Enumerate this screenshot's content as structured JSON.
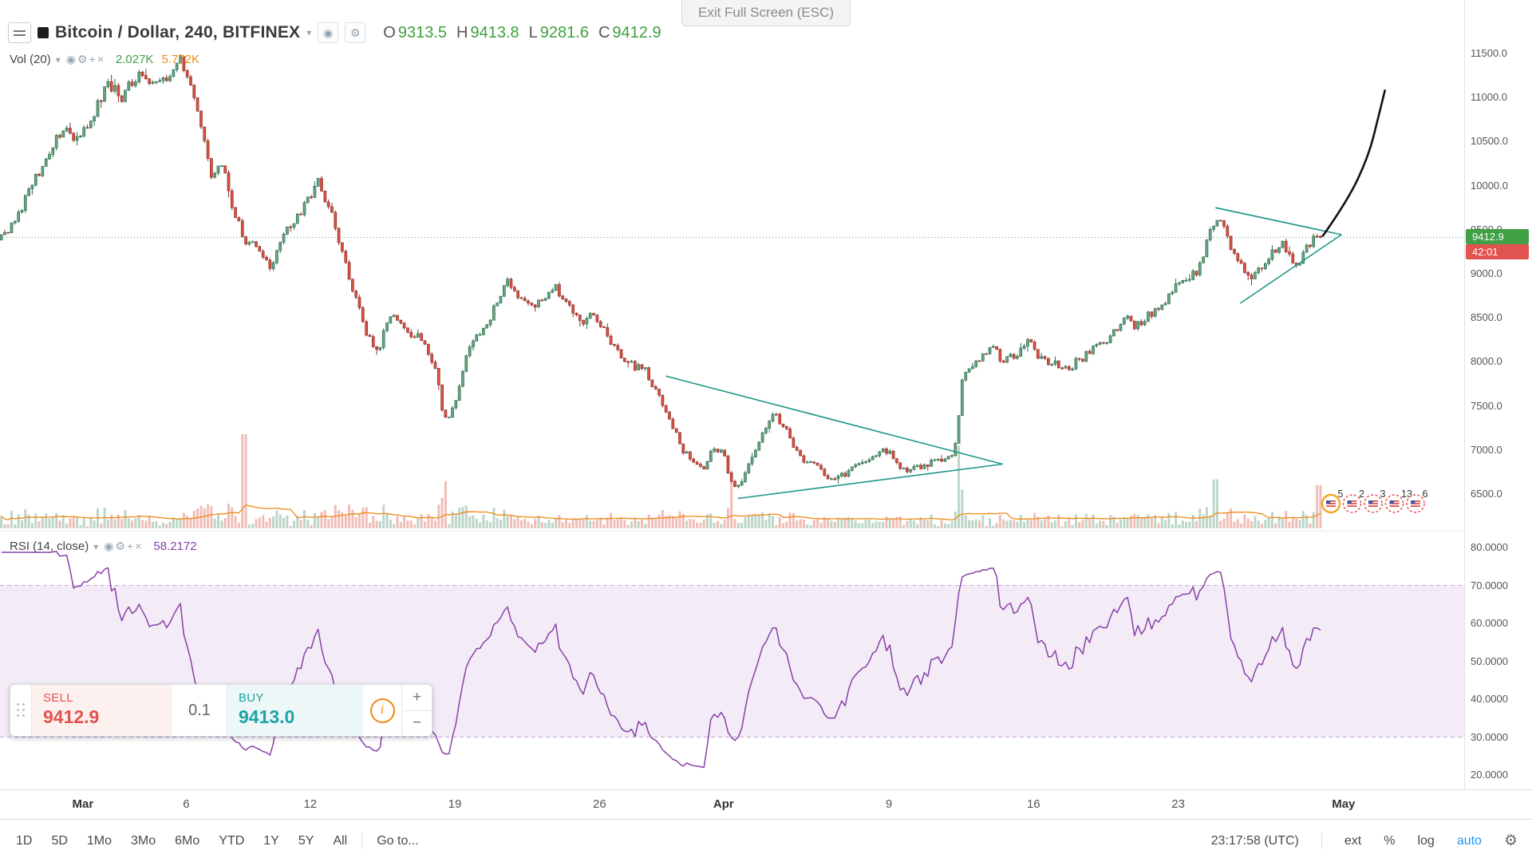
{
  "colors": {
    "up": "#6ba583",
    "up_border": "#2c6e4e",
    "down": "#d75442",
    "down_border": "#93302a",
    "vol_up": "rgba(107,165,131,0.45)",
    "vol_down": "rgba(215,84,66,0.38)",
    "vol_ma": "#ef8914",
    "accent_green": "#3fa03f",
    "accent_orange": "#ef8914",
    "badge_green": "#3fa045",
    "badge_red": "#e0534f",
    "rsi": "#8740a8",
    "rsi_band": "rgba(135,64,168,0.10)",
    "rsi_band_border": "rgba(135,64,168,0.45)",
    "drawing": "#1d9688",
    "freehand": "#111111",
    "price_line": "#3a9e74",
    "sell": "#e0534f",
    "buy": "#1fa3a3",
    "link_blue": "#2196f3"
  },
  "header": {
    "symbol_title": "Bitcoin / Dollar, 240, BITFINEX",
    "tooltip": "Exit Full Screen (ESC)",
    "ohlc": {
      "o_label": "O",
      "o": "9313.5",
      "h_label": "H",
      "h": "9413.8",
      "l_label": "L",
      "l": "9281.6",
      "c_label": "C",
      "c": "9412.9"
    }
  },
  "volume_indicator": {
    "label": "Vol (20)",
    "value1": "2.027K",
    "value2": "5.772K"
  },
  "rsi_indicator": {
    "label": "RSI (14, close)",
    "value": "58.2172"
  },
  "indicator_icons": [
    "eye",
    "gear",
    "add",
    "close"
  ],
  "price_axis": {
    "levels": [
      {
        "label": "11500.0",
        "value": 11500
      },
      {
        "label": "11000.0",
        "value": 11000
      },
      {
        "label": "10500.0",
        "value": 10500
      },
      {
        "label": "10000.0",
        "value": 10000
      },
      {
        "label": "9500.0",
        "value": 9500
      },
      {
        "label": "9000.0",
        "value": 9000
      },
      {
        "label": "8500.0",
        "value": 8500
      },
      {
        "label": "8000.0",
        "value": 8000
      },
      {
        "label": "7500.0",
        "value": 7500
      },
      {
        "label": "7000.0",
        "value": 7000
      },
      {
        "label": "6500.0",
        "value": 6500
      }
    ],
    "price_badge": "9412.9",
    "countdown_badge": "42:01"
  },
  "rsi_axis": {
    "levels": [
      {
        "label": "80.0000",
        "value": 80
      },
      {
        "label": "70.0000",
        "value": 70
      },
      {
        "label": "60.0000",
        "value": 60
      },
      {
        "label": "50.0000",
        "value": 50
      },
      {
        "label": "40.0000",
        "value": 40
      },
      {
        "label": "30.0000",
        "value": 30
      },
      {
        "label": "20.0000",
        "value": 20
      }
    ]
  },
  "time_axis": {
    "labels": [
      {
        "text": "Mar",
        "t": 1,
        "major": true
      },
      {
        "text": "6",
        "t": 6
      },
      {
        "text": "12",
        "t": 12
      },
      {
        "text": "19",
        "t": 19
      },
      {
        "text": "26",
        "t": 26
      },
      {
        "text": "Apr",
        "t": 32,
        "major": true
      },
      {
        "text": "9",
        "t": 40
      },
      {
        "text": "16",
        "t": 47
      },
      {
        "text": "23",
        "t": 54
      },
      {
        "text": "May",
        "t": 62,
        "major": true
      }
    ]
  },
  "order_panel": {
    "sell_label": "SELL",
    "sell_price": "9412.9",
    "quantity": "0.1",
    "buy_label": "BUY",
    "buy_price": "9413.0",
    "info": "i",
    "plus": "+",
    "minus": "−"
  },
  "toolbar": {
    "ranges": [
      "1D",
      "5D",
      "1Mo",
      "3Mo",
      "6Mo",
      "YTD",
      "1Y",
      "5Y",
      "All"
    ],
    "goto": "Go to...",
    "clock": "23:17:58 (UTC)",
    "ext": "ext",
    "percent": "%",
    "log": "log",
    "auto": "auto"
  },
  "event_flags": {
    "counts": [
      "5",
      "2",
      "3",
      "13",
      "6"
    ]
  },
  "chart_data": {
    "type": "candlestick",
    "symbol": "BTCUSD",
    "exchange": "BITFINEX",
    "interval": "240",
    "interval_minutes": 240,
    "price_range": [
      6500,
      11500
    ],
    "rsi_range": [
      20,
      80
    ],
    "time_range_days_from_feb28": [
      -3,
      62
    ],
    "current_price": 9412.9,
    "rsi_value": 58.2172,
    "ohlc_last": {
      "open": 9313.5,
      "high": 9413.8,
      "low": 9281.6,
      "close": 9412.9
    },
    "price_path": [
      [
        -3.2,
        9350
      ],
      [
        -2.6,
        9450
      ],
      [
        -1.6,
        9950
      ],
      [
        -0.9,
        10250
      ],
      [
        0.1,
        10700
      ],
      [
        0.8,
        10500
      ],
      [
        1.5,
        10800
      ],
      [
        2.2,
        11150
      ],
      [
        2.9,
        11000
      ],
      [
        3.6,
        11250
      ],
      [
        4.3,
        11100
      ],
      [
        5.0,
        11200
      ],
      [
        5.7,
        11450
      ],
      [
        6.4,
        11000
      ],
      [
        7.2,
        10150
      ],
      [
        7.8,
        10300
      ],
      [
        8.3,
        9700
      ],
      [
        8.9,
        9350
      ],
      [
        9.5,
        9300
      ],
      [
        10.1,
        9050
      ],
      [
        10.8,
        9500
      ],
      [
        11.4,
        9650
      ],
      [
        12.0,
        9900
      ],
      [
        12.4,
        10050
      ],
      [
        13.0,
        9700
      ],
      [
        13.5,
        9300
      ],
      [
        14.1,
        8800
      ],
      [
        14.7,
        8350
      ],
      [
        15.3,
        8100
      ],
      [
        15.7,
        8450
      ],
      [
        16.3,
        8500
      ],
      [
        16.9,
        8300
      ],
      [
        17.5,
        8250
      ],
      [
        18.1,
        7850
      ],
      [
        18.5,
        7350
      ],
      [
        19.0,
        7500
      ],
      [
        19.6,
        8150
      ],
      [
        20.3,
        8350
      ],
      [
        20.9,
        8600
      ],
      [
        21.5,
        8900
      ],
      [
        22.1,
        8750
      ],
      [
        22.7,
        8600
      ],
      [
        23.3,
        8700
      ],
      [
        23.9,
        8850
      ],
      [
        24.5,
        8650
      ],
      [
        25.1,
        8450
      ],
      [
        25.7,
        8550
      ],
      [
        26.4,
        8300
      ],
      [
        27.1,
        8000
      ],
      [
        27.7,
        7950
      ],
      [
        28.2,
        7900
      ],
      [
        28.9,
        7600
      ],
      [
        29.4,
        7350
      ],
      [
        30.0,
        7000
      ],
      [
        30.5,
        6900
      ],
      [
        31.0,
        6800
      ],
      [
        31.5,
        7000
      ],
      [
        32.0,
        6950
      ],
      [
        32.4,
        6600
      ],
      [
        32.9,
        6650
      ],
      [
        33.4,
        6950
      ],
      [
        33.8,
        7150
      ],
      [
        34.4,
        7400
      ],
      [
        34.9,
        7300
      ],
      [
        35.5,
        7000
      ],
      [
        36.0,
        6850
      ],
      [
        36.6,
        6800
      ],
      [
        37.2,
        6650
      ],
      [
        37.7,
        6700
      ],
      [
        38.3,
        6800
      ],
      [
        38.9,
        6850
      ],
      [
        39.4,
        6950
      ],
      [
        39.9,
        7000
      ],
      [
        40.4,
        6850
      ],
      [
        40.9,
        6750
      ],
      [
        41.4,
        6800
      ],
      [
        42.0,
        6850
      ],
      [
        42.6,
        6900
      ],
      [
        43.0,
        6950
      ],
      [
        43.3,
        7100
      ],
      [
        43.5,
        7800
      ],
      [
        43.9,
        7950
      ],
      [
        44.5,
        8050
      ],
      [
        45.0,
        8150
      ],
      [
        45.6,
        8000
      ],
      [
        46.2,
        8100
      ],
      [
        46.7,
        8250
      ],
      [
        47.3,
        8050
      ],
      [
        47.9,
        8000
      ],
      [
        48.5,
        7900
      ],
      [
        49.1,
        8000
      ],
      [
        49.7,
        8100
      ],
      [
        50.2,
        8200
      ],
      [
        50.8,
        8300
      ],
      [
        51.4,
        8500
      ],
      [
        51.9,
        8400
      ],
      [
        52.4,
        8500
      ],
      [
        53.0,
        8600
      ],
      [
        53.6,
        8750
      ],
      [
        54.1,
        8900
      ],
      [
        54.6,
        8950
      ],
      [
        55.1,
        9100
      ],
      [
        55.6,
        9550
      ],
      [
        56.0,
        9600
      ],
      [
        56.5,
        9350
      ],
      [
        57.0,
        9150
      ],
      [
        57.4,
        8950
      ],
      [
        58.0,
        9050
      ],
      [
        58.5,
        9250
      ],
      [
        59.0,
        9350
      ],
      [
        59.4,
        9200
      ],
      [
        59.8,
        9100
      ],
      [
        60.2,
        9300
      ],
      [
        60.6,
        9400
      ],
      [
        61.0,
        9412.9
      ]
    ],
    "volume_spikes": [
      [
        8.8,
        1.0
      ],
      [
        18.5,
        0.5
      ],
      [
        32.4,
        0.6
      ],
      [
        43.4,
        0.88
      ],
      [
        55.8,
        0.52
      ],
      [
        60.8,
        0.46
      ]
    ],
    "drawings": {
      "pennant1_upper": [
        [
          29.2,
          7840
        ],
        [
          45.5,
          6840
        ]
      ],
      "pennant1_lower": [
        [
          32.7,
          6450
        ],
        [
          45.5,
          6840
        ]
      ],
      "pennant2_upper": [
        [
          55.8,
          9750
        ],
        [
          61.9,
          9444
        ]
      ],
      "pennant2_lower": [
        [
          57.0,
          8665
        ],
        [
          61.9,
          9444
        ]
      ],
      "freehand_arrow": [
        [
          61.0,
          9430
        ],
        [
          62.2,
          9830
        ],
        [
          63.2,
          10330
        ],
        [
          63.7,
          10790
        ],
        [
          64.0,
          11080
        ]
      ]
    }
  }
}
